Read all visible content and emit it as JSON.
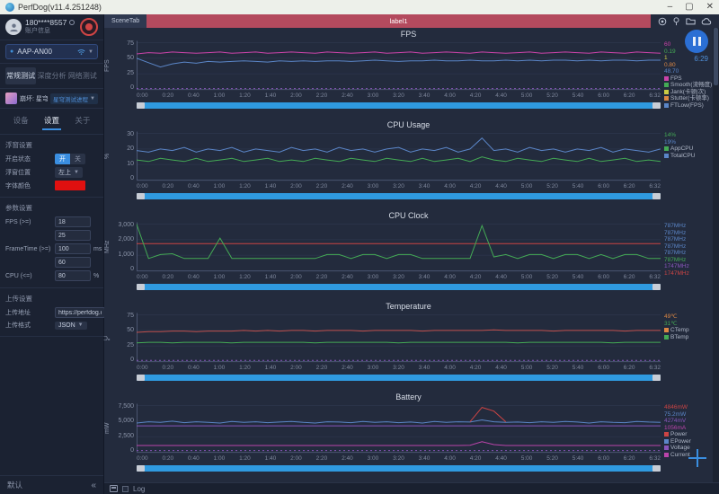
{
  "titlebar": {
    "title": "PerfDog(v11.4.251248)",
    "minimize": "–",
    "maximize": "▢",
    "close": "✕"
  },
  "sidebar": {
    "user": {
      "phone": "180****8557",
      "account_label": "账户信息"
    },
    "device": {
      "name": "AAP-AN00"
    },
    "test_tabs": {
      "t0": "常规测试",
      "t1": "深度分析",
      "t2": "网络测试"
    },
    "app": {
      "name": "崩坏: 星穹铁道",
      "process": "星穹测试进程",
      "caret": "▼"
    },
    "sub_tabs": {
      "t0": "设备",
      "t1": "设置",
      "t2": "关于"
    },
    "float": {
      "title": "浮窗设置",
      "enable_label": "开启状态",
      "on": "开",
      "off": "关",
      "position_label": "浮窗位置",
      "position_value": "左上",
      "color_label": "字体颜色"
    },
    "param": {
      "title": "参数设置",
      "rows": [
        {
          "label": "FPS (>=)",
          "value": "18",
          "unit": ""
        },
        {
          "label": "",
          "value": "25",
          "unit": ""
        },
        {
          "label": "FrameTime (>=)",
          "value": "100",
          "unit": "ms"
        },
        {
          "label": "",
          "value": "60",
          "unit": ""
        },
        {
          "label": "CPU (<=)",
          "value": "80",
          "unit": "%"
        }
      ]
    },
    "upload": {
      "title": "上传设置",
      "addr_label": "上传地址",
      "addr_value": "https://perfdog.q",
      "fmt_label": "上传格式",
      "fmt_value": "JSON",
      "caret": "▼"
    },
    "footer": {
      "default_label": "默认",
      "collapse": "«"
    }
  },
  "main": {
    "scene_tab": "SceneTab",
    "label_bar": "label1",
    "toolbar_icons": [
      "record-target",
      "location-pin",
      "folder",
      "cloud"
    ],
    "timer": "6:29",
    "log_label": "Log"
  },
  "chart_data": [
    {
      "type": "line",
      "title": "FPS",
      "ylabel": "FPS",
      "ylim": [
        0,
        75
      ],
      "yticks": [
        "75",
        "50",
        "25",
        "0"
      ],
      "xticks": [
        "0:00",
        "0:20",
        "0:40",
        "1:00",
        "1:20",
        "1:40",
        "2:00",
        "2:20",
        "2:40",
        "3:00",
        "3:20",
        "3:40",
        "4:00",
        "4:20",
        "4:40",
        "5:00",
        "5:20",
        "5:40",
        "6:00",
        "6:20",
        "6:32"
      ],
      "values": [
        {
          "text": "60",
          "color": "#cc44aa"
        },
        {
          "text": "0.19",
          "color": "#44aa55"
        },
        {
          "text": "1",
          "color": "#cccc44"
        },
        {
          "text": "0.80",
          "color": "#dd8844"
        },
        {
          "text": "48.70",
          "color": "#5b86c8"
        }
      ],
      "legend": [
        {
          "label": "FPS",
          "color": "#cc44aa"
        },
        {
          "label": "Smooth(流畅度)",
          "color": "#44aa55"
        },
        {
          "label": "Jank(卡顿|次)",
          "color": "#cccc44"
        },
        {
          "label": "Stutter(卡顿率)",
          "color": "#dd8844"
        },
        {
          "label": "FTLow(FPS)",
          "color": "#5b86c8"
        }
      ],
      "series": [
        {
          "name": "FPS",
          "color": "#cc44aa",
          "values": [
            57,
            59,
            58,
            60,
            59,
            58,
            59,
            60,
            58,
            59,
            60,
            58,
            59,
            60,
            59,
            58,
            60,
            59,
            58,
            59,
            60,
            58,
            59,
            60,
            58,
            59,
            60,
            59,
            58,
            60,
            59,
            58,
            59,
            60,
            58,
            59,
            60,
            59,
            58,
            60,
            59,
            58,
            60,
            59,
            58
          ]
        },
        {
          "name": "FTLow",
          "color": "#5b86c8",
          "values": [
            50,
            43,
            36,
            41,
            44,
            42,
            45,
            44,
            45,
            46,
            45,
            44,
            46,
            45,
            46,
            45,
            46,
            46,
            45,
            46,
            47,
            46,
            45,
            46,
            46,
            47,
            46,
            46,
            47,
            46,
            46,
            47,
            46,
            47,
            46,
            47,
            47,
            46,
            47,
            46,
            47,
            47,
            46,
            47,
            47
          ]
        },
        {
          "name": "Jank-marks",
          "color": "#8855bb",
          "dash": true,
          "values": [
            1.5,
            1.5
          ]
        }
      ]
    },
    {
      "type": "line",
      "title": "CPU Usage",
      "ylabel": "%",
      "ylim": [
        0,
        30
      ],
      "yticks": [
        "30",
        "20",
        "10",
        "0"
      ],
      "xticks": [
        "0:00",
        "0:20",
        "0:40",
        "1:00",
        "1:20",
        "1:40",
        "2:00",
        "2:20",
        "2:40",
        "3:00",
        "3:20",
        "3:40",
        "4:00",
        "4:20",
        "4:40",
        "5:00",
        "5:20",
        "5:40",
        "6:00",
        "6:20",
        "6:32"
      ],
      "values": [
        {
          "text": "14%",
          "color": "#44aa55"
        },
        {
          "text": "19%",
          "color": "#5b86c8"
        }
      ],
      "legend": [
        {
          "label": "AppCPU",
          "color": "#44aa55"
        },
        {
          "label": "TotalCPU",
          "color": "#5b86c8"
        }
      ],
      "series": [
        {
          "name": "TotalCPU",
          "color": "#5b86c8",
          "values": [
            19,
            18,
            20,
            19,
            21,
            18,
            20,
            19,
            21,
            18,
            20,
            19,
            18,
            21,
            19,
            20,
            18,
            21,
            19,
            20,
            18,
            20,
            21,
            18,
            20,
            19,
            21,
            18,
            20,
            27,
            19,
            20,
            18,
            21,
            19,
            20,
            18,
            20,
            19,
            21,
            18,
            20,
            19,
            18,
            20
          ]
        },
        {
          "name": "AppCPU",
          "color": "#44aa55",
          "values": [
            13,
            12,
            14,
            13,
            12,
            14,
            12,
            13,
            14,
            12,
            13,
            14,
            12,
            13,
            12,
            14,
            13,
            12,
            14,
            13,
            12,
            14,
            13,
            12,
            14,
            12,
            13,
            14,
            12,
            15,
            13,
            12,
            14,
            13,
            12,
            14,
            13,
            12,
            14,
            12,
            13,
            14,
            12,
            13,
            12
          ]
        }
      ]
    },
    {
      "type": "line",
      "title": "CPU Clock",
      "ylabel": "MHz",
      "ylim": [
        0,
        3000
      ],
      "yticks": [
        "3,000",
        "2,000",
        "1,000",
        "0"
      ],
      "xticks": [
        "0:00",
        "0:20",
        "0:40",
        "1:00",
        "1:20",
        "1:40",
        "2:00",
        "2:20",
        "2:40",
        "3:00",
        "3:20",
        "3:40",
        "4:00",
        "4:20",
        "4:40",
        "5:00",
        "5:20",
        "5:40",
        "6:00",
        "6:20",
        "6:32"
      ],
      "values": [
        {
          "text": "787MHz",
          "color": "#5b86c8"
        },
        {
          "text": "787MHz",
          "color": "#5b86c8"
        },
        {
          "text": "787MHz",
          "color": "#5b86c8"
        },
        {
          "text": "787MHz",
          "color": "#5b86c8"
        },
        {
          "text": "787MHz",
          "color": "#5b86c8"
        },
        {
          "text": "787MHz",
          "color": "#44aa55"
        },
        {
          "text": "1747MHz",
          "color": "#8855bb"
        },
        {
          "text": "1747MHz",
          "color": "#cc4444"
        }
      ],
      "legend": [],
      "series": [
        {
          "name": "BigCore",
          "color": "#cc4444",
          "values": [
            1750,
            1750
          ]
        },
        {
          "name": "LittleCore",
          "color": "#44aa55",
          "values": [
            3000,
            800,
            1050,
            1100,
            800,
            800,
            800,
            2100,
            800,
            800,
            800,
            800,
            800,
            800,
            800,
            800,
            1050,
            1050,
            800,
            1050,
            1050,
            800,
            1050,
            1050,
            800,
            800,
            800,
            800,
            800,
            2900,
            900,
            1050,
            800,
            1050,
            1050,
            800,
            1050,
            1050,
            800,
            1050,
            800,
            1050,
            1050,
            800,
            800
          ]
        }
      ]
    },
    {
      "type": "line",
      "title": "Temperature",
      "ylabel": "℃",
      "ylim": [
        0,
        75
      ],
      "yticks": [
        "75",
        "50",
        "25",
        "0"
      ],
      "xticks": [
        "0:00",
        "0:20",
        "0:40",
        "1:00",
        "1:20",
        "1:40",
        "2:00",
        "2:20",
        "2:40",
        "3:00",
        "3:20",
        "3:40",
        "4:00",
        "4:20",
        "4:40",
        "5:00",
        "5:20",
        "5:40",
        "6:00",
        "6:20",
        "6:32"
      ],
      "values": [
        {
          "text": "49℃",
          "color": "#dd8844"
        },
        {
          "text": "31℃",
          "color": "#44aa55"
        }
      ],
      "legend": [
        {
          "label": "CTemp",
          "color": "#dd8844"
        },
        {
          "label": "BTemp",
          "color": "#44aa55"
        }
      ],
      "series": [
        {
          "name": "CTemp",
          "color": "#c0504d",
          "values": [
            47,
            48,
            48,
            49,
            49,
            48,
            49,
            49,
            49,
            50,
            49,
            50,
            49,
            50,
            50,
            49,
            50,
            50,
            50,
            49,
            50,
            50,
            50,
            50,
            49,
            50,
            50,
            50,
            50,
            50,
            51,
            50,
            50,
            50,
            50,
            49,
            50,
            50,
            50,
            50,
            50,
            49,
            50,
            50,
            50
          ]
        },
        {
          "name": "BTemp",
          "color": "#44aa55",
          "values": [
            30,
            31,
            31,
            30,
            31,
            31,
            31,
            31,
            30,
            31,
            31,
            31,
            31,
            31,
            31,
            30,
            31,
            31,
            31,
            31,
            31,
            31,
            30,
            31,
            31,
            31,
            31,
            31,
            31,
            31,
            31,
            31,
            30,
            31,
            31,
            31,
            31,
            31,
            31,
            31,
            30,
            31,
            31,
            31,
            31
          ]
        },
        {
          "name": "marks",
          "color": "#8855bb",
          "dash": true,
          "values": [
            2,
            2
          ]
        }
      ]
    },
    {
      "type": "line",
      "title": "Battery",
      "ylabel": "mW",
      "ylim": [
        0,
        7500
      ],
      "yticks": [
        "7,500",
        "5,000",
        "2,500",
        "0"
      ],
      "xticks": [
        "0:00",
        "0:20",
        "0:40",
        "1:00",
        "1:20",
        "1:40",
        "2:00",
        "2:20",
        "2:40",
        "3:00",
        "3:20",
        "3:40",
        "4:00",
        "4:20",
        "4:40",
        "5:00",
        "5:20",
        "5:40",
        "6:00",
        "6:20",
        "6:32"
      ],
      "values": [
        {
          "text": "4846mW",
          "color": "#cc4444"
        },
        {
          "text": "75.2mW",
          "color": "#5b86c8"
        },
        {
          "text": "4274mV",
          "color": "#8855bb"
        },
        {
          "text": "1056mA",
          "color": "#bb44aa"
        }
      ],
      "legend": [
        {
          "label": "Power",
          "color": "#cc4444"
        },
        {
          "label": "EPower",
          "color": "#5b86c8"
        },
        {
          "label": "Voltage",
          "color": "#8855bb"
        },
        {
          "label": "Current",
          "color": "#bb44aa"
        }
      ],
      "series": [
        {
          "name": "EPower",
          "color": "#5b86c8",
          "values": [
            4700,
            4900,
            4800,
            5000,
            4750,
            4900,
            4800,
            4700,
            4950,
            4800,
            4900,
            4750,
            4850,
            4950,
            4800,
            4700,
            4900,
            4850,
            4750,
            4950,
            4800,
            4900,
            4750,
            4850,
            4700,
            4950,
            4800,
            4900,
            4850,
            5200,
            4900,
            4800,
            4850,
            4750,
            4900,
            4800,
            4950,
            4850,
            4700,
            4900,
            4800,
            4750,
            4950,
            4850,
            4800
          ]
        },
        {
          "name": "Power-spike",
          "color": "#cc4444",
          "values": [
            null,
            null,
            null,
            null,
            null,
            null,
            null,
            null,
            null,
            null,
            null,
            null,
            null,
            null,
            null,
            null,
            null,
            null,
            null,
            null,
            null,
            null,
            null,
            null,
            null,
            null,
            null,
            null,
            4900,
            7200,
            6600,
            4900,
            null,
            null,
            null,
            null,
            null,
            null,
            null,
            null,
            null,
            null,
            null,
            null,
            null
          ]
        },
        {
          "name": "Voltage",
          "color": "#8855bb",
          "values": [
            4250,
            4250
          ]
        },
        {
          "name": "Current",
          "color": "#bb44aa",
          "values": [
            1100,
            1100,
            1100,
            1100,
            1100,
            1100,
            1100,
            1100,
            1100,
            1100,
            1100,
            1100,
            1100,
            1100,
            1100,
            1100,
            1100,
            1100,
            1100,
            1100,
            1100,
            1100,
            1100,
            1100,
            1100,
            1100,
            1100,
            1100,
            1150,
            1700,
            1250,
            1100,
            1100,
            1100,
            1100,
            1100,
            1100,
            1100,
            1100,
            1100,
            1100,
            1100,
            1100,
            1100,
            1100
          ]
        },
        {
          "name": "marks",
          "color": "#8855bb",
          "dash": true,
          "values": [
            300,
            300
          ]
        }
      ]
    }
  ]
}
